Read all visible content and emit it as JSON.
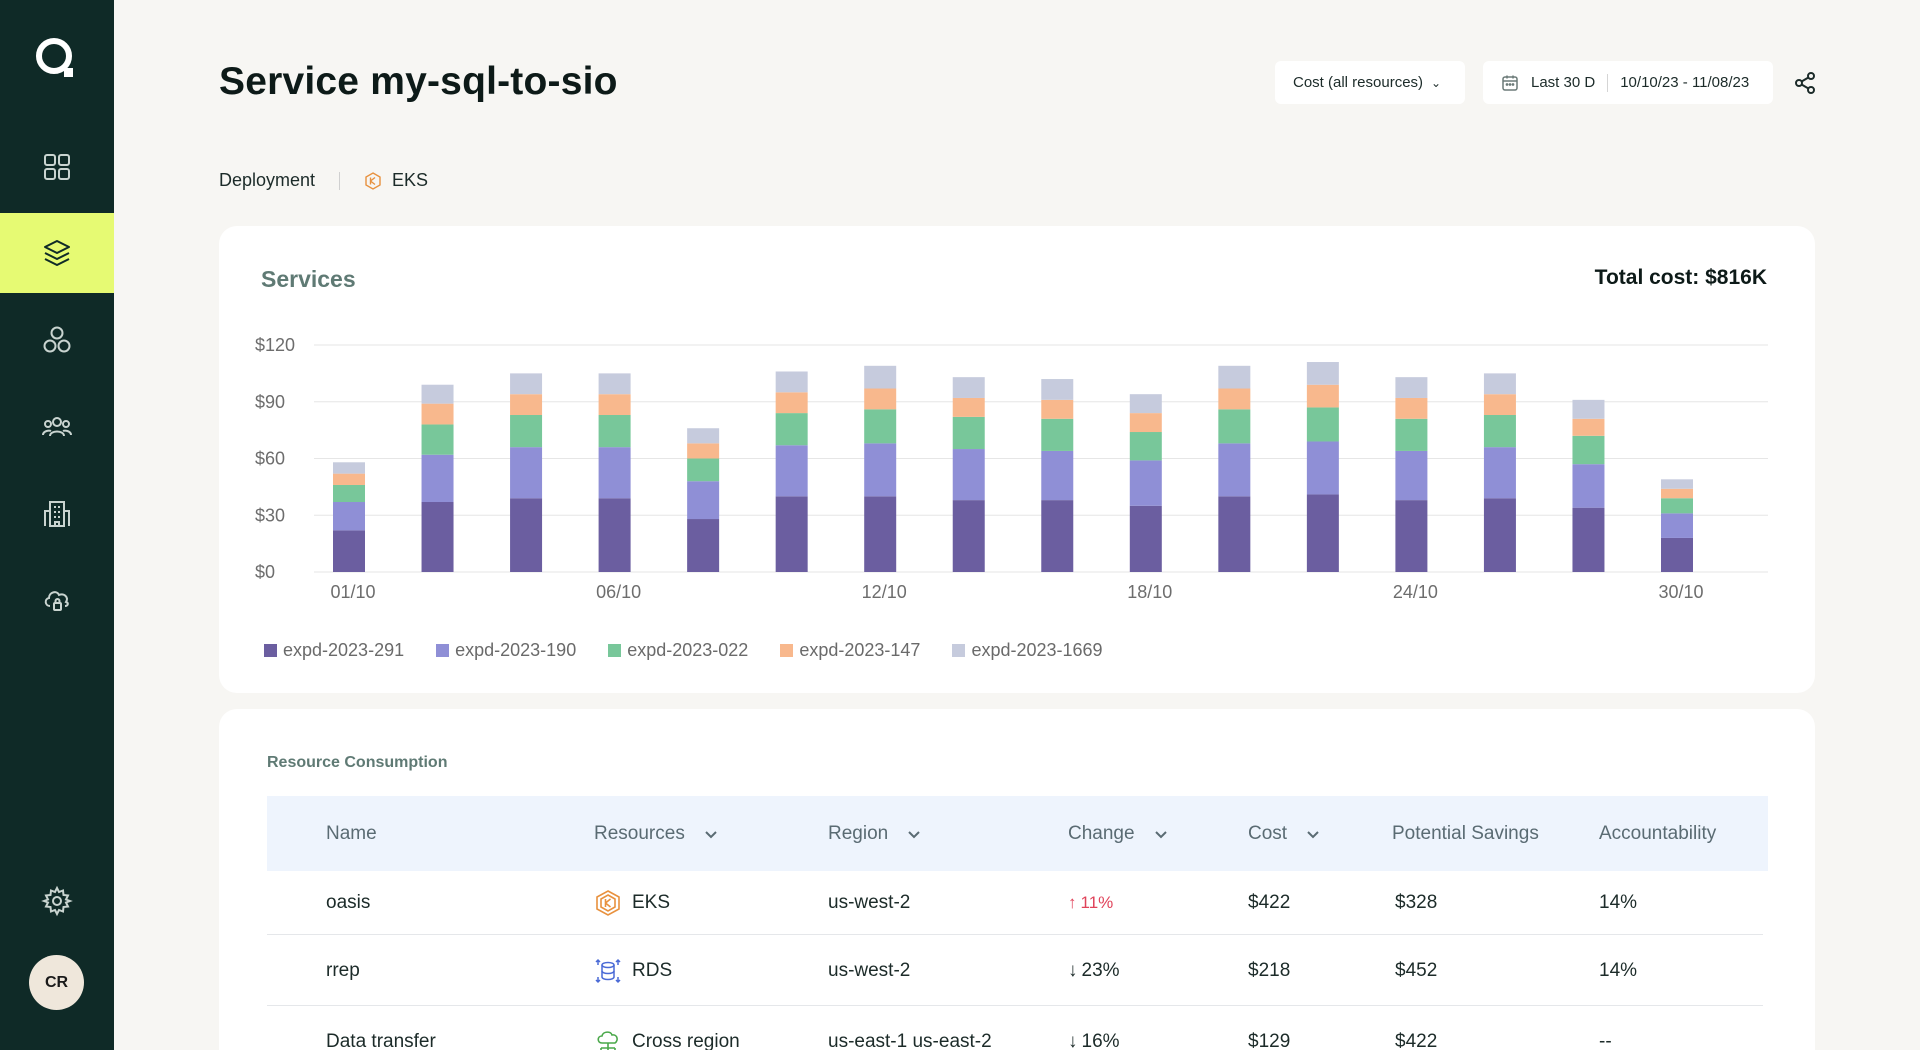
{
  "page": {
    "title": "Service my-sql-to-sio"
  },
  "header": {
    "cost_select": "Cost (all resources)",
    "range_label": "Last 30 D",
    "date_range": "10/10/23 - 11/08/23"
  },
  "deployment": {
    "label": "Deployment",
    "platform": "EKS"
  },
  "sidebar": {
    "items": [
      {
        "name": "dashboard-icon"
      },
      {
        "name": "layers-icon",
        "active": true
      },
      {
        "name": "services-icon"
      },
      {
        "name": "team-icon"
      },
      {
        "name": "building-icon"
      },
      {
        "name": "cloud-lock-icon"
      }
    ],
    "settings": "gear-icon",
    "avatar": "CR"
  },
  "chart": {
    "title": "Services",
    "total_cost": "Total cost: $816K"
  },
  "chart_data": {
    "type": "bar",
    "stacked": true,
    "y_ticks": [
      "$120",
      "$90",
      "$60",
      "$30",
      "$0"
    ],
    "ylim": [
      0,
      120
    ],
    "x_tick_labels": [
      "01/10",
      "06/10",
      "12/10",
      "18/10",
      "24/10",
      "30/10"
    ],
    "series": [
      {
        "name": "expd-2023-291",
        "color": "#6b5ea0",
        "values": [
          22,
          37,
          39,
          39,
          28,
          40,
          40,
          38,
          38,
          35,
          40,
          41,
          38,
          39,
          34,
          18
        ]
      },
      {
        "name": "expd-2023-190",
        "color": "#8f8fd6",
        "values": [
          15,
          25,
          27,
          27,
          20,
          27,
          28,
          27,
          26,
          24,
          28,
          28,
          26,
          27,
          23,
          13
        ]
      },
      {
        "name": "expd-2023-022",
        "color": "#78c79a",
        "values": [
          9,
          16,
          17,
          17,
          12,
          17,
          18,
          17,
          17,
          15,
          18,
          18,
          17,
          17,
          15,
          8
        ]
      },
      {
        "name": "expd-2023-147",
        "color": "#f8b88d",
        "values": [
          6,
          11,
          11,
          11,
          8,
          11,
          11,
          10,
          10,
          10,
          11,
          12,
          11,
          11,
          9,
          5
        ]
      },
      {
        "name": "expd-2023-1669",
        "color": "#c6cbdd",
        "values": [
          6,
          10,
          11,
          11,
          8,
          11,
          12,
          11,
          11,
          10,
          12,
          12,
          11,
          11,
          10,
          5
        ]
      }
    ],
    "legend_position": "bottom-left",
    "grid": true
  },
  "table": {
    "title": "Resource Consumption",
    "headers": [
      "Name",
      "Resources",
      "Region",
      "Change",
      "Cost",
      "Potential Savings",
      "Accountability"
    ],
    "rows": [
      {
        "name": "oasis",
        "resource": "EKS",
        "resource_icon": "eks-icon",
        "region": "us-west-2",
        "change": "11%",
        "direction": "up",
        "cost": "$422",
        "savings": "$328",
        "accountability": "14%"
      },
      {
        "name": "rrep",
        "resource": "RDS",
        "resource_icon": "rds-icon",
        "region": "us-west-2",
        "change": "23%",
        "direction": "down",
        "cost": "$218",
        "savings": "$452",
        "accountability": "14%"
      },
      {
        "name": "Data transfer",
        "resource": "Cross region",
        "resource_icon": "cloud-network-icon",
        "region": "us-east-1 us-east-2",
        "change": "16%",
        "direction": "down",
        "cost": "$129",
        "savings": "$422",
        "accountability": "--"
      }
    ]
  }
}
